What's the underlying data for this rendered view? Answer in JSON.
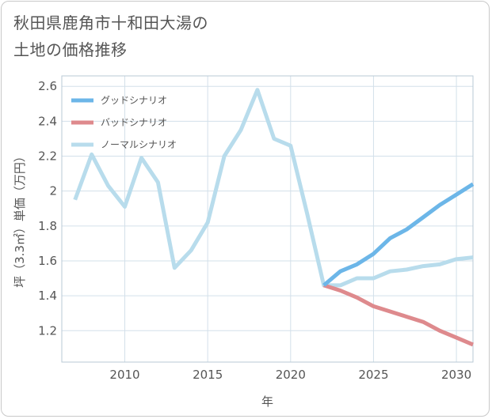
{
  "title_lines": [
    "秋田県鹿角市十和田大湯の",
    "土地の価格推移"
  ],
  "chart_data": {
    "type": "line",
    "xlabel": "年",
    "ylabel": "坪（3.3㎡）単価（万円）",
    "xlim": [
      2006.2,
      2031
    ],
    "ylim": [
      1.02,
      2.66
    ],
    "xticks": [
      2010,
      2015,
      2020,
      2025,
      2030
    ],
    "yticks": [
      1.2,
      1.4,
      1.6,
      1.8,
      2.0,
      2.2,
      2.4,
      2.6
    ],
    "ytick_labels": [
      "1.2",
      "1.4",
      "1.6",
      "1.8",
      "2",
      "2.2",
      "2.4",
      "2.6"
    ],
    "legend_position": "top-left",
    "series": [
      {
        "name": "グッドシナリオ",
        "color": "#6cb6e8",
        "x": [
          2022,
          2023,
          2024,
          2025,
          2026,
          2027,
          2028,
          2029,
          2030,
          2031
        ],
        "values": [
          1.46,
          1.54,
          1.58,
          1.64,
          1.73,
          1.78,
          1.85,
          1.92,
          1.98,
          2.04
        ]
      },
      {
        "name": "バッドシナリオ",
        "color": "#de8a8d",
        "x": [
          2022,
          2023,
          2024,
          2025,
          2026,
          2027,
          2028,
          2029,
          2030,
          2031
        ],
        "values": [
          1.46,
          1.43,
          1.39,
          1.34,
          1.31,
          1.28,
          1.25,
          1.2,
          1.16,
          1.12
        ]
      },
      {
        "name": "ノーマルシナリオ",
        "color": "#b8dcec",
        "x": [
          2007,
          2008,
          2009,
          2010,
          2011,
          2012,
          2013,
          2014,
          2015,
          2016,
          2017,
          2018,
          2019,
          2020,
          2021,
          2022,
          2023,
          2024,
          2025,
          2026,
          2027,
          2028,
          2029,
          2030,
          2031
        ],
        "values": [
          1.95,
          2.21,
          2.03,
          1.91,
          2.19,
          2.05,
          1.56,
          1.66,
          1.82,
          2.2,
          2.35,
          2.58,
          2.3,
          2.26,
          1.87,
          1.46,
          1.46,
          1.5,
          1.5,
          1.54,
          1.55,
          1.57,
          1.58,
          1.61,
          1.62
        ]
      }
    ]
  }
}
